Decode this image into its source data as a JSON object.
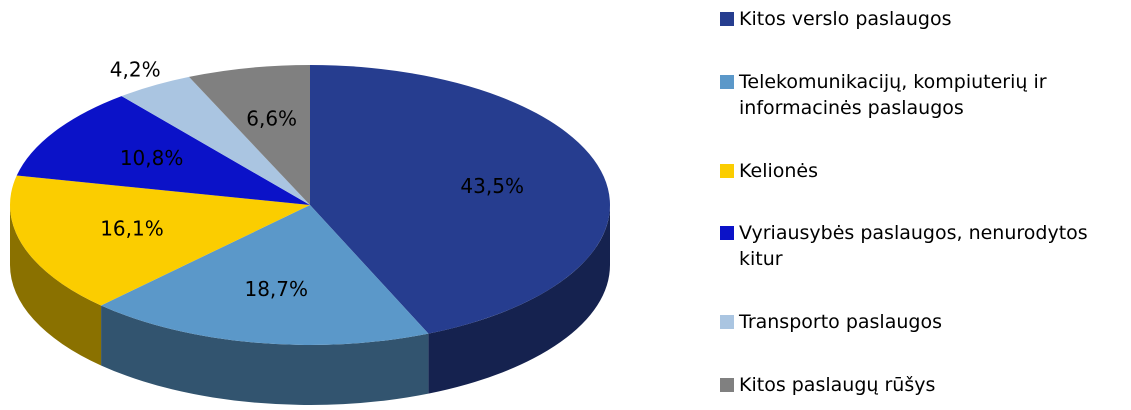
{
  "chart_data": {
    "type": "pie",
    "categories": [
      "Kitos verslo paslaugos",
      "Telekomunikacijų, kompiuterių ir informacinės paslaugos",
      "Kelionės",
      "Vyriausybės paslaugos, nenurodytos kitur",
      "Transporto paslaugos",
      "Kitos paslaugų rūšys"
    ],
    "values": [
      43.5,
      18.7,
      16.1,
      10.8,
      4.2,
      6.6
    ],
    "value_labels": [
      "43,5%",
      "18,7%",
      "16,1%",
      "10,8%",
      "4,2%",
      "6,6%"
    ],
    "colors": [
      "#263d8f",
      "#5b98c9",
      "#fbcd00",
      "#0b12c8",
      "#aac5e1",
      "#808080"
    ]
  }
}
